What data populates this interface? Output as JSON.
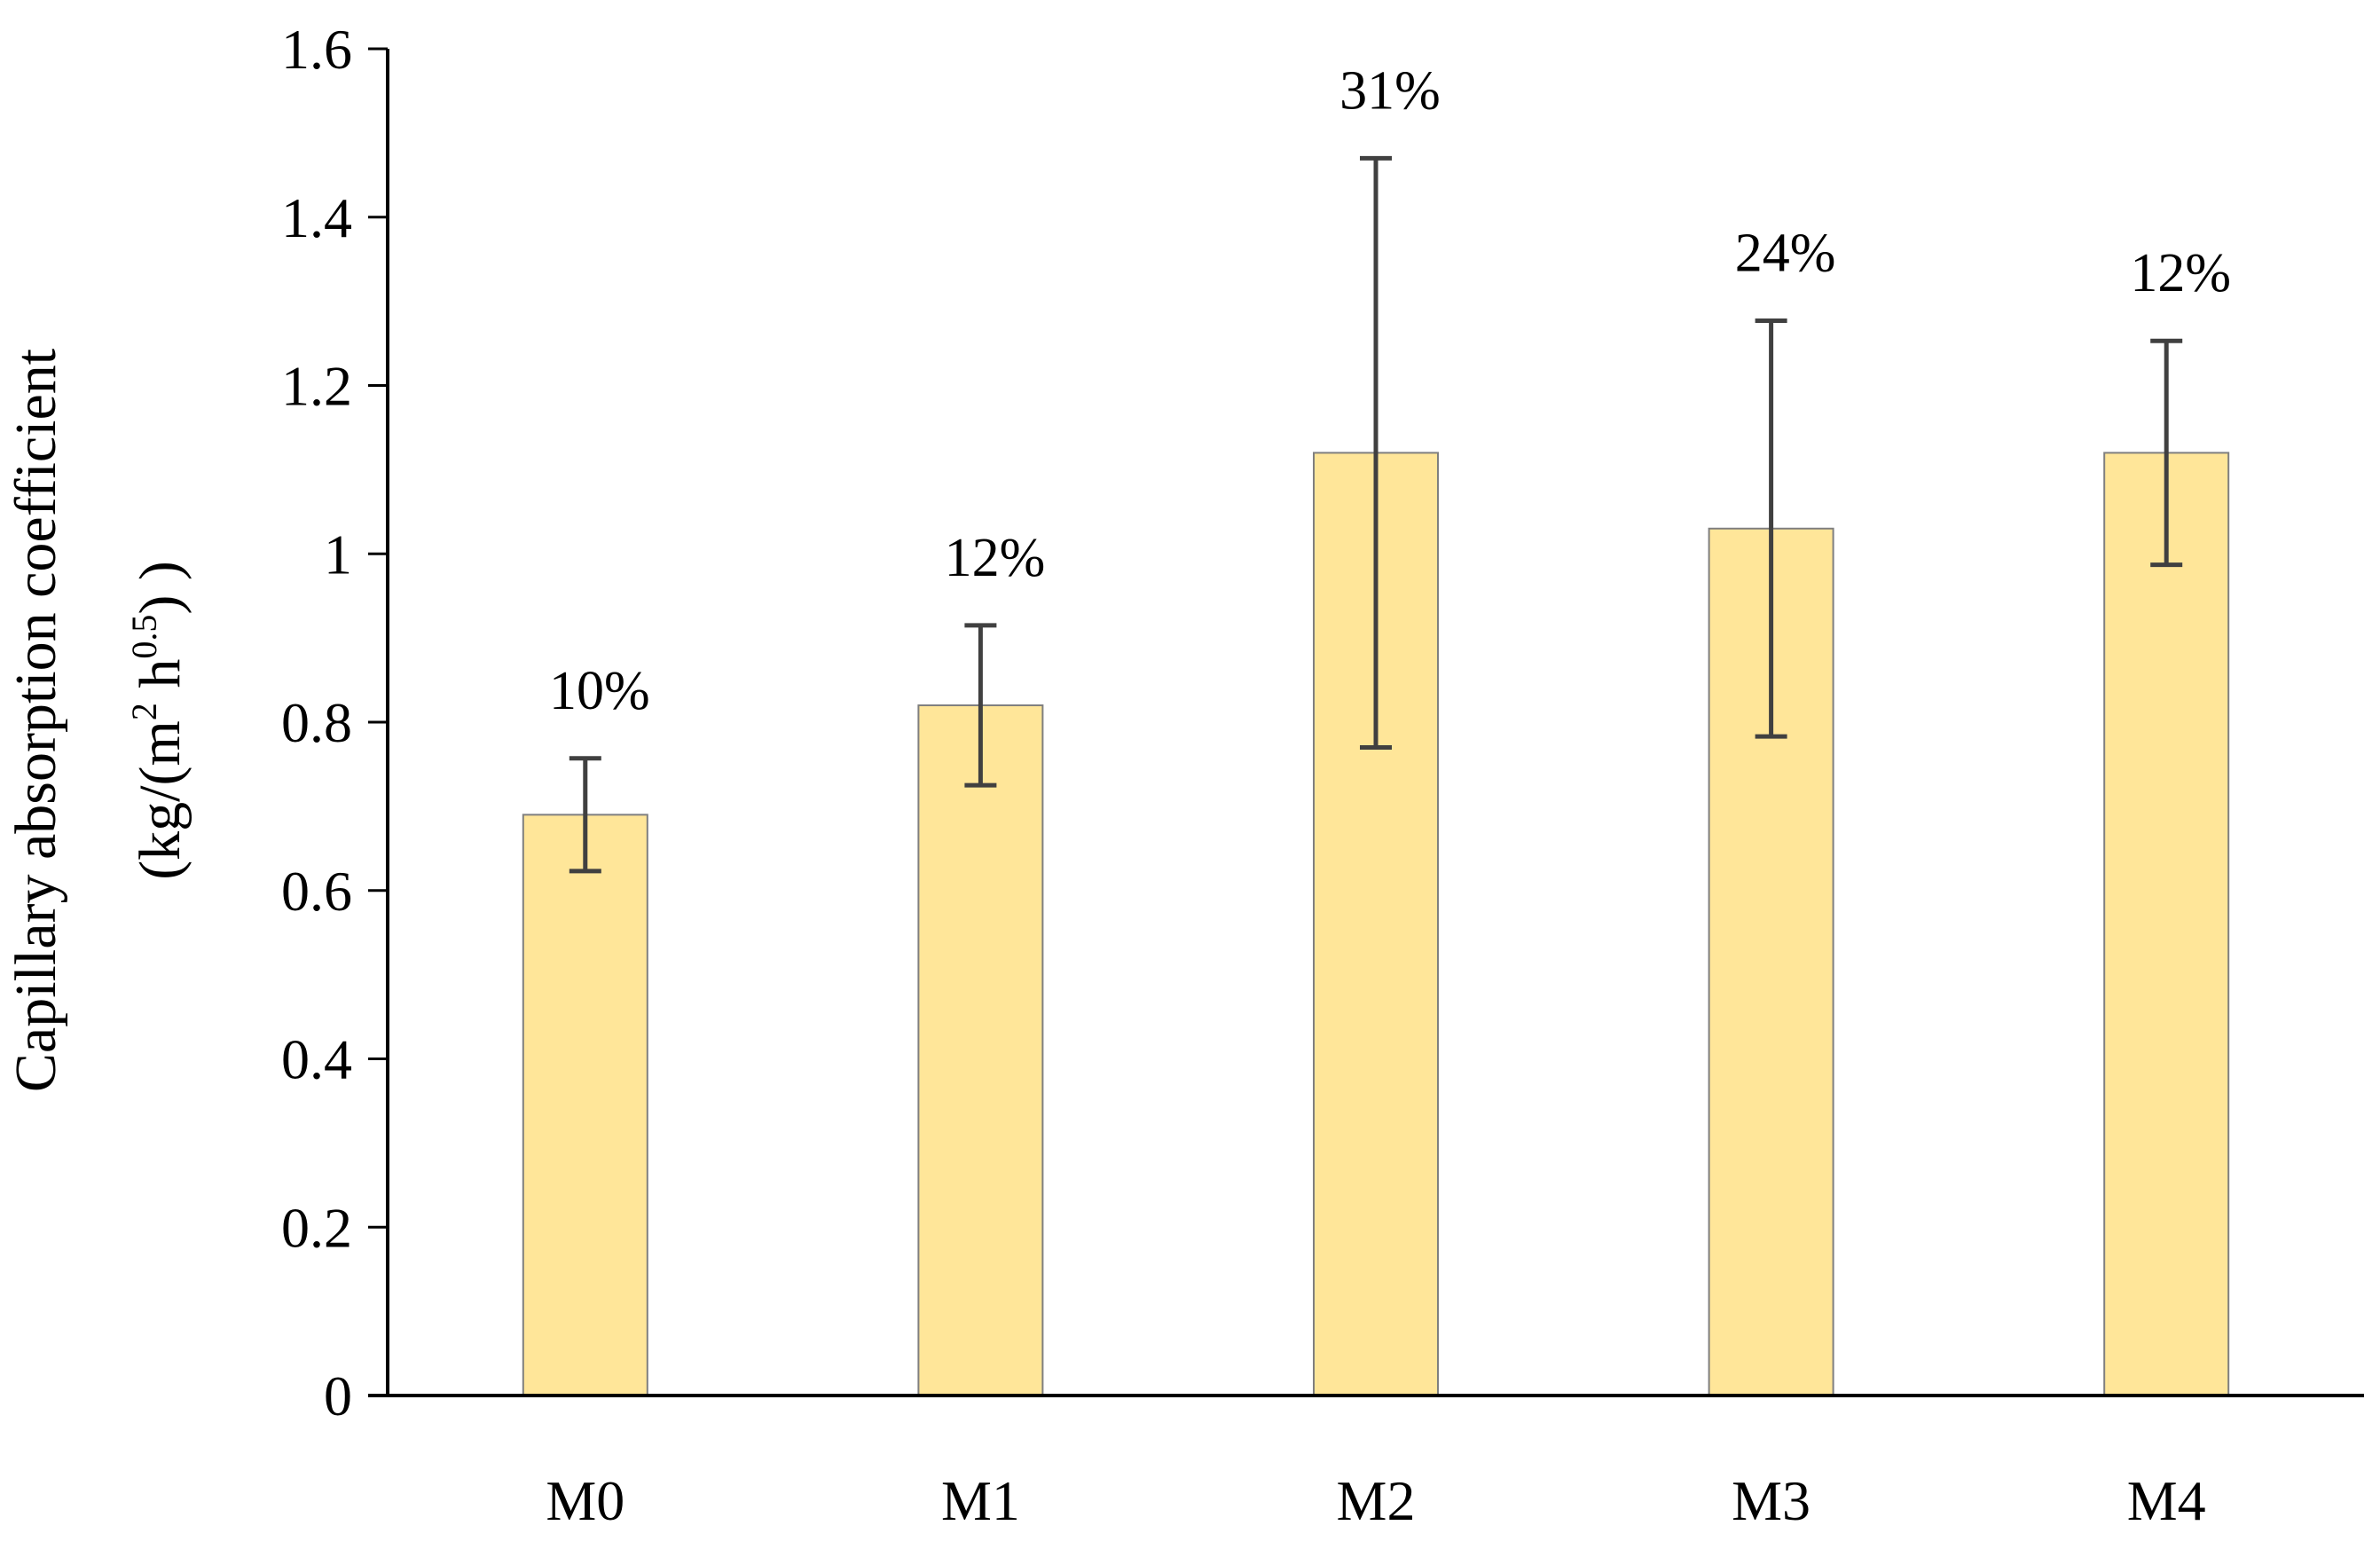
{
  "colors": {
    "bar_fill": "#FFE699",
    "bar_stroke": "#7F7F7F",
    "error_bar": "#404040",
    "axis": "#000000"
  },
  "chart_data": {
    "type": "bar",
    "title": "",
    "xlabel": "",
    "ylabel_line1": "Capillary absorption coefficient",
    "ylabel_line2": {
      "part1": "(kg/(m",
      "sup1": "2",
      "part2": " h",
      "sup2": "0.5",
      "part3": ") )"
    },
    "categories": [
      "M0",
      "M1",
      "M2",
      "M3",
      "M4"
    ],
    "values": [
      0.69,
      0.82,
      1.12,
      1.03,
      1.12
    ],
    "error_plus": [
      0.067,
      0.095,
      0.35,
      0.247,
      0.133
    ],
    "error_minus": [
      0.067,
      0.095,
      0.35,
      0.247,
      0.133
    ],
    "data_labels": [
      "10%",
      "12%",
      "31%",
      "24%",
      "12%"
    ],
    "ylim": [
      0,
      1.6
    ],
    "yticks": [
      0,
      0.2,
      0.4,
      0.6,
      0.8,
      1,
      1.2,
      1.4,
      1.6
    ],
    "ytick_labels": [
      "0",
      "0.2",
      "0.4",
      "0.6",
      "0.8",
      "1",
      "1.2",
      "1.4",
      "1.6"
    ],
    "grid": false,
    "legend": "none"
  }
}
